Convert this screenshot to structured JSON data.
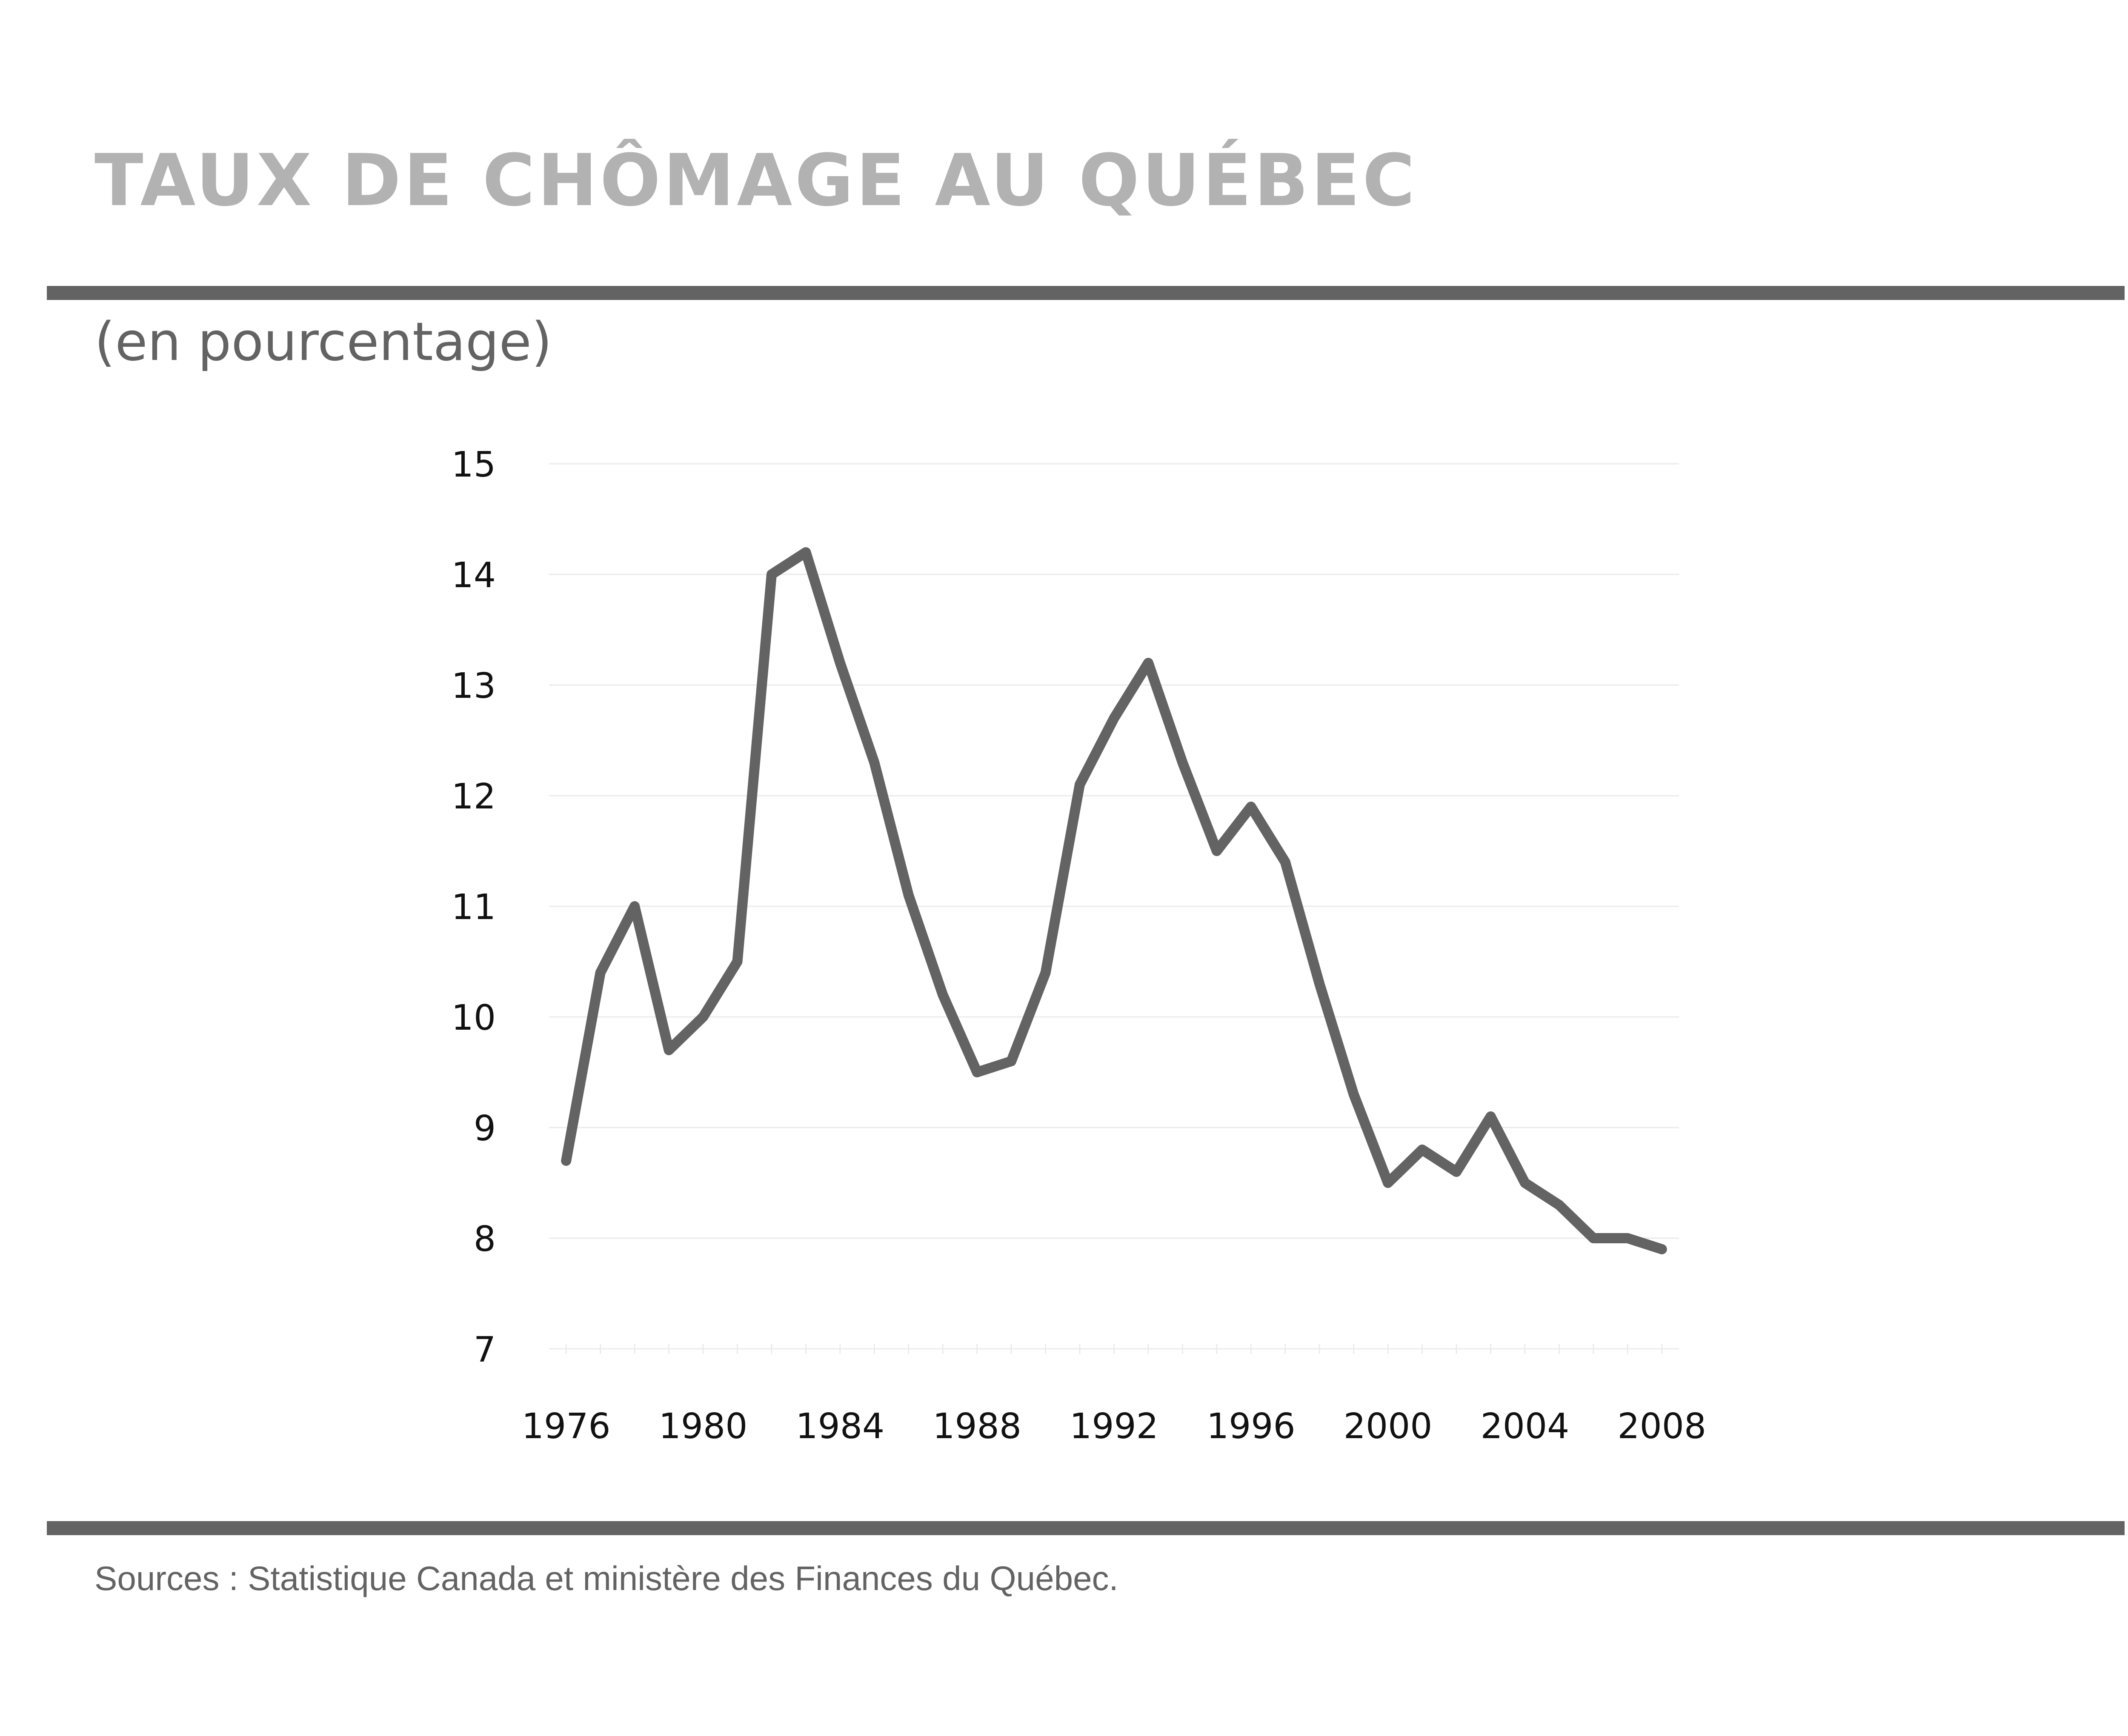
{
  "header": {
    "title": "TAUX DE CHÔMAGE AU QUÉBEC",
    "subtitle": "(en pourcentage)"
  },
  "footer": {
    "source": "Sources :  Statistique Canada et ministère des Finances du Québec."
  },
  "colors": {
    "line": "#636363",
    "title": "#b2b2b2",
    "rule": "#636363",
    "gridline": "#ebebeb",
    "tick_text": "#111111"
  },
  "chart_data": {
    "type": "line",
    "title": "TAUX DE CHÔMAGE AU QUÉBEC",
    "subtitle": "(en pourcentage)",
    "xlabel": "",
    "ylabel": "",
    "x": [
      1976,
      1977,
      1978,
      1979,
      1980,
      1981,
      1982,
      1983,
      1984,
      1985,
      1986,
      1987,
      1988,
      1989,
      1990,
      1991,
      1992,
      1993,
      1994,
      1995,
      1996,
      1997,
      1998,
      1999,
      2000,
      2001,
      2002,
      2003,
      2004,
      2005,
      2006,
      2007,
      2008
    ],
    "series": [
      {
        "values": [
          8.7,
          10.4,
          11.0,
          9.7,
          10.0,
          10.5,
          14.0,
          14.2,
          13.2,
          12.3,
          11.1,
          10.2,
          9.5,
          9.6,
          10.4,
          12.1,
          12.7,
          13.2,
          12.3,
          11.5,
          11.9,
          11.4,
          10.3,
          9.3,
          8.5,
          8.8,
          8.6,
          9.1,
          8.5,
          8.3,
          8.0,
          8.0,
          7.9
        ]
      }
    ],
    "xlim": [
      1975.5,
      2008.5
    ],
    "ylim": [
      7,
      15
    ],
    "x_ticks": [
      1976,
      1980,
      1984,
      1988,
      1992,
      1996,
      2000,
      2004,
      2008
    ],
    "x_tick_labels": [
      "1976",
      "1980",
      "1984",
      "1988",
      "1992",
      "1996",
      "2000",
      "2004",
      "2008"
    ],
    "y_ticks": [
      7,
      8,
      9,
      10,
      11,
      12,
      13,
      14,
      15
    ],
    "y_tick_labels": [
      "7",
      "8",
      "9",
      "10",
      "11",
      "12",
      "13",
      "14",
      "15"
    ],
    "grid": true,
    "legend": "none"
  }
}
